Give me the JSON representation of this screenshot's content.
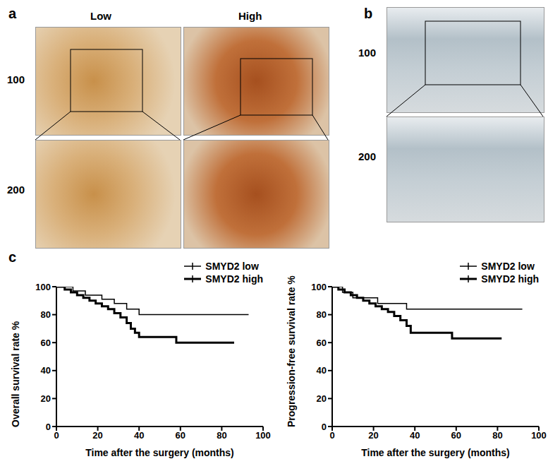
{
  "panels": {
    "a": {
      "label": "a",
      "columns": [
        "Low",
        "High"
      ],
      "rows": [
        "100",
        "200"
      ]
    },
    "b": {
      "label": "b",
      "rows": [
        "100",
        "200"
      ]
    },
    "c": {
      "label": "c"
    }
  },
  "chart_data": [
    {
      "type": "line",
      "ylabel": "Overall survival rate %",
      "xlabel": "Time after the surgery (months)",
      "xlim": [
        0,
        100
      ],
      "xticks": [
        0,
        20,
        40,
        60,
        80,
        100
      ],
      "ylim": [
        0,
        100
      ],
      "yticks": [
        0,
        20,
        40,
        60,
        80,
        100
      ],
      "legend": "top-right",
      "series": [
        {
          "name": "SMYD2 low",
          "color": "#000000",
          "line_style": "thin",
          "x": [
            0,
            8,
            14,
            22,
            28,
            34,
            40,
            93
          ],
          "values": [
            100,
            97,
            94,
            91,
            88,
            84,
            80,
            80
          ]
        },
        {
          "name": "SMYD2 high",
          "color": "#000000",
          "line_style": "thick",
          "x": [
            0,
            4,
            7,
            10,
            13,
            16,
            19,
            22,
            25,
            28,
            31,
            34,
            36,
            38,
            40,
            58,
            86
          ],
          "values": [
            100,
            98,
            96,
            94,
            92,
            90,
            88,
            86,
            84,
            81,
            78,
            74,
            70,
            67,
            64,
            60,
            60
          ]
        }
      ]
    },
    {
      "type": "line",
      "ylabel": "Progression-free survival rate %",
      "xlabel": "Time after the surgery (months)",
      "xlim": [
        0,
        100
      ],
      "xticks": [
        0,
        20,
        40,
        60,
        80,
        100
      ],
      "ylim": [
        0,
        100
      ],
      "yticks": [
        0,
        20,
        40,
        60,
        80,
        100
      ],
      "legend": "top-right",
      "series": [
        {
          "name": "SMYD2 low",
          "color": "#000000",
          "line_style": "thin",
          "x": [
            0,
            5,
            10,
            22,
            36,
            92
          ],
          "values": [
            100,
            96,
            92,
            88,
            84,
            84
          ]
        },
        {
          "name": "SMYD2 high",
          "color": "#000000",
          "line_style": "thick",
          "x": [
            0,
            3,
            6,
            9,
            12,
            15,
            18,
            21,
            24,
            27,
            30,
            33,
            36,
            38,
            58,
            82
          ],
          "values": [
            100,
            98,
            96,
            94,
            92,
            90,
            88,
            86,
            84,
            82,
            79,
            76,
            72,
            67,
            63,
            63
          ]
        }
      ]
    }
  ]
}
